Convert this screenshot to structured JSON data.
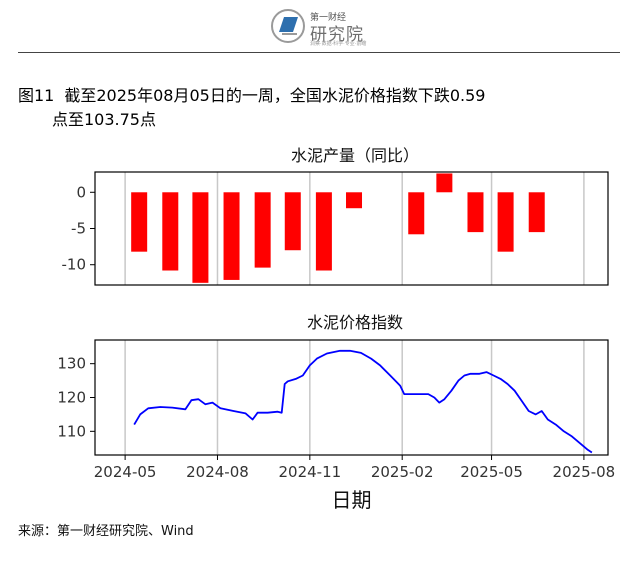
{
  "header": {
    "logo_top": "第一财经",
    "logo_main": "研究院",
    "logo_sub": "洞察·数据·科学·专业·前瞻"
  },
  "figure": {
    "label": "图11",
    "title_line1": "截至2025年08月05日的一周，全国水泥价格指数下跌0.59",
    "title_line2": "点至103.75点"
  },
  "source": "来源：第一财经研究院、Wind",
  "colors": {
    "bar": "#ff0000",
    "line": "#0000ff",
    "grid": "#c8c8c8",
    "axis": "#000000"
  },
  "chart_data": [
    {
      "type": "bar",
      "title": "水泥产量（同比）",
      "categories": [
        "2024-05",
        "2024-06",
        "2024-07",
        "2024-08",
        "2024-09",
        "2024-10",
        "2024-11",
        "2024-12",
        "2025-01",
        "2025-02",
        "2025-03",
        "2025-04",
        "2025-05",
        "2025-06"
      ],
      "values": [
        -8.2,
        -10.8,
        -12.5,
        -12.1,
        -10.4,
        -8.0,
        -10.8,
        -2.2,
        null,
        -5.8,
        2.6,
        -5.5,
        -8.2,
        -5.5
      ],
      "ylim": [
        -12.8,
        2.8
      ],
      "yticks": [
        0,
        -5,
        -10
      ],
      "xlim": [
        "2024-04-01",
        "2025-08-25"
      ],
      "grid": true
    },
    {
      "type": "line",
      "title": "水泥价格指数",
      "xlabel": "日期",
      "ylim": [
        103,
        137
      ],
      "yticks": [
        110,
        120,
        130
      ],
      "xlim": [
        "2024-04-01",
        "2025-08-25"
      ],
      "xticks": [
        "2024-05",
        "2024-08",
        "2024-11",
        "2025-02",
        "2025-05",
        "2025-08"
      ],
      "grid": true,
      "points": [
        [
          "2024-05-10",
          112.0
        ],
        [
          "2024-05-16",
          115.0
        ],
        [
          "2024-05-24",
          116.8
        ],
        [
          "2024-06-05",
          117.2
        ],
        [
          "2024-06-17",
          117.0
        ],
        [
          "2024-06-30",
          116.5
        ],
        [
          "2024-07-06",
          119.2
        ],
        [
          "2024-07-13",
          119.5
        ],
        [
          "2024-07-20",
          118.0
        ],
        [
          "2024-07-27",
          118.5
        ],
        [
          "2024-08-04",
          116.8
        ],
        [
          "2024-08-17",
          116.0
        ],
        [
          "2024-08-29",
          115.3
        ],
        [
          "2024-09-05",
          113.5
        ],
        [
          "2024-09-10",
          115.5
        ],
        [
          "2024-09-20",
          115.5
        ],
        [
          "2024-09-30",
          115.8
        ],
        [
          "2024-10-04",
          115.5
        ],
        [
          "2024-10-07",
          124.0
        ],
        [
          "2024-10-10",
          124.8
        ],
        [
          "2024-10-18",
          125.5
        ],
        [
          "2024-10-25",
          126.5
        ],
        [
          "2024-11-01",
          129.5
        ],
        [
          "2024-11-08",
          131.5
        ],
        [
          "2024-11-18",
          133.0
        ],
        [
          "2024-12-01",
          133.8
        ],
        [
          "2024-12-11",
          133.8
        ],
        [
          "2024-12-22",
          133.2
        ],
        [
          "2025-01-01",
          131.5
        ],
        [
          "2025-01-10",
          129.5
        ],
        [
          "2025-01-20",
          126.5
        ],
        [
          "2025-01-30",
          123.5
        ],
        [
          "2025-02-03",
          121.0
        ],
        [
          "2025-02-20",
          121.0
        ],
        [
          "2025-02-27",
          121.0
        ],
        [
          "2025-03-05",
          120.0
        ],
        [
          "2025-03-10",
          118.5
        ],
        [
          "2025-03-15",
          119.5
        ],
        [
          "2025-03-22",
          122.0
        ],
        [
          "2025-03-29",
          125.0
        ],
        [
          "2025-04-04",
          126.5
        ],
        [
          "2025-04-10",
          127.0
        ],
        [
          "2025-04-19",
          127.0
        ],
        [
          "2025-04-26",
          127.5
        ],
        [
          "2025-05-03",
          126.5
        ],
        [
          "2025-05-10",
          125.5
        ],
        [
          "2025-05-17",
          124.0
        ],
        [
          "2025-05-24",
          122.0
        ],
        [
          "2025-05-31",
          119.0
        ],
        [
          "2025-06-07",
          116.0
        ],
        [
          "2025-06-14",
          115.0
        ],
        [
          "2025-06-20",
          116.0
        ],
        [
          "2025-06-26",
          113.5
        ],
        [
          "2025-07-04",
          112.0
        ],
        [
          "2025-07-12",
          110.0
        ],
        [
          "2025-07-20",
          108.5
        ],
        [
          "2025-07-28",
          106.5
        ],
        [
          "2025-08-05",
          104.5
        ],
        [
          "2025-08-09",
          103.75
        ]
      ]
    }
  ]
}
